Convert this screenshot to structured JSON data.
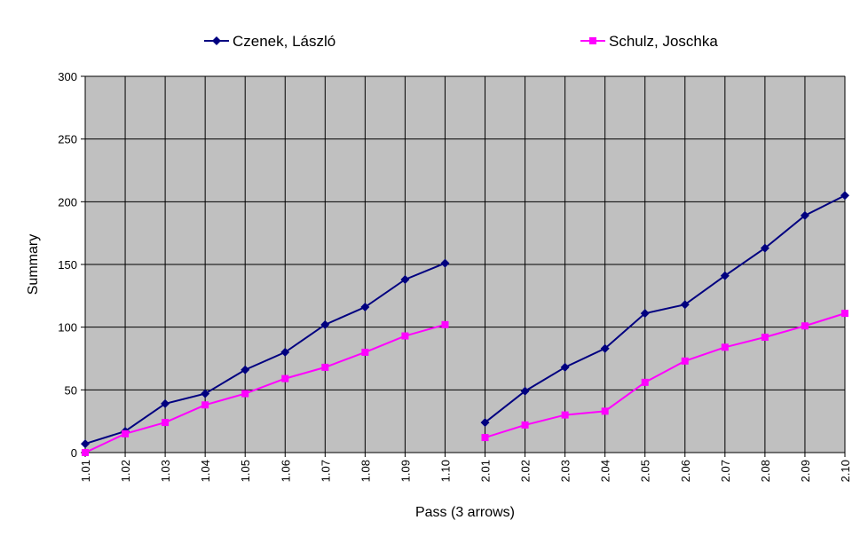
{
  "chart_data": {
    "type": "line",
    "title": "",
    "xlabel": "Pass (3 arrows)",
    "ylabel": "Summary",
    "ylim": [
      0,
      300
    ],
    "yticks": [
      "0",
      "50",
      "100",
      "150",
      "200",
      "250",
      "300"
    ],
    "grid": true,
    "legend_position": "top",
    "plot_background": "#c0c0c0",
    "categories": [
      "1.01",
      "1.02",
      "1.03",
      "1.04",
      "1.05",
      "1.06",
      "1.07",
      "1.08",
      "1.09",
      "1.10",
      "2.01",
      "2.02",
      "2.03",
      "2.04",
      "2.05",
      "2.06",
      "2.07",
      "2.08",
      "2.09",
      "2.10"
    ],
    "series": [
      {
        "name": "Czenek, László",
        "color": "#000080",
        "marker": "diamond",
        "values": [
          7,
          17,
          39,
          47,
          66,
          80,
          102,
          116,
          138,
          151,
          24,
          49,
          68,
          83,
          111,
          118,
          141,
          163,
          189,
          205
        ]
      },
      {
        "name": "Schulz, Joschka",
        "color": "#ff00ff",
        "marker": "square",
        "values": [
          0,
          15,
          24,
          38,
          47,
          59,
          68,
          80,
          93,
          102,
          12,
          22,
          30,
          33,
          56,
          73,
          84,
          92,
          101,
          111
        ]
      }
    ],
    "segment_breaks_after": [
      "1.10"
    ]
  }
}
